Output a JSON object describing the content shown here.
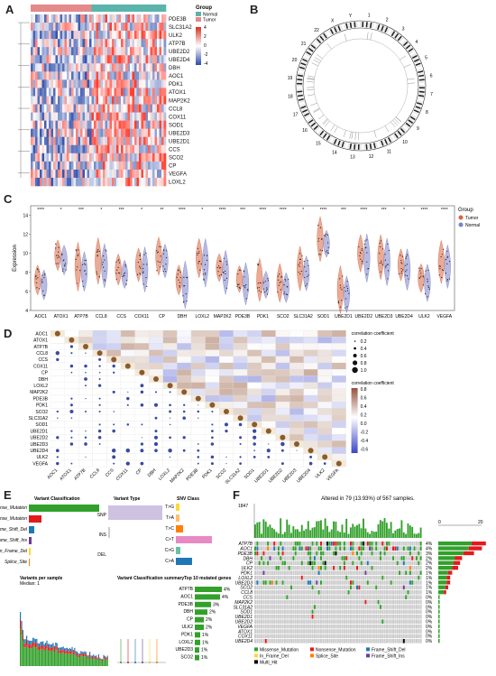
{
  "panel_letters": [
    "A",
    "B",
    "C",
    "D",
    "E",
    "F"
  ],
  "panel_a": {
    "genes": [
      "PDE3B",
      "SLC31A2",
      "ULK2",
      "ATP7B",
      "UBE2D2",
      "UBE2D4",
      "DBH",
      "AOC1",
      "PDK1",
      "ATOX1",
      "MAP2K2",
      "CCL8",
      "COX11",
      "SOD1",
      "UBE2D3",
      "UBE2D1",
      "CCS",
      "SCO2",
      "CP",
      "VEGFA",
      "LOXL2"
    ],
    "legend_title": "Group",
    "legend_items": [
      "Normal",
      "Tumor"
    ],
    "scale_ticks": [
      "4",
      "2",
      "0",
      "-2",
      "-4"
    ],
    "colors": {
      "normal": "#5ab4ac",
      "tumor": "#e58a8a",
      "high": "#d7301f",
      "low": "#2c4ba8"
    }
  },
  "panel_b": {
    "chromosomes": [
      "1",
      "2",
      "3",
      "4",
      "5",
      "6",
      "7",
      "8",
      "9",
      "10",
      "11",
      "12",
      "13",
      "14",
      "15",
      "16",
      "17",
      "18",
      "19",
      "20",
      "21",
      "22",
      "X",
      "Y"
    ]
  },
  "panel_c": {
    "y_label": "Expression",
    "y_ticks": [
      "14",
      "12",
      "10",
      "8",
      "6",
      "4"
    ],
    "genes": [
      "AOC1",
      "ATOX1",
      "ATP7B",
      "CCL8",
      "CCS",
      "COX11",
      "CP",
      "DBH",
      "LOXL2",
      "MAP2K2",
      "PDE3B",
      "PDK1",
      "SCO2",
      "SLC31A2",
      "SOD1",
      "UBE2D1",
      "UBE2D2",
      "UBE2D3",
      "UBE2D4",
      "ULK2",
      "VEGFA"
    ],
    "significance": [
      "****",
      "*",
      "***",
      "*",
      "***",
      "*",
      "**",
      "****",
      "*",
      "****",
      "***",
      "****",
      "****",
      "*",
      "****",
      "***",
      "****",
      "***",
      "*",
      "****",
      "****"
    ],
    "legend_title": "Group",
    "legend_items": [
      "Tumor",
      "Normal"
    ],
    "colors": {
      "tumor": "#d9663f",
      "normal": "#7b82c8"
    }
  },
  "panel_d": {
    "genes": [
      "AOC1",
      "ATOX1",
      "ATP7B",
      "CCL8",
      "CCS",
      "COX11",
      "CP",
      "DBH",
      "LOXL2",
      "MAP2K2",
      "PDE3B",
      "PDK1",
      "SCO2",
      "SLC31A2",
      "SOD1",
      "UBE2D1",
      "UBE2D2",
      "UBE2D3",
      "UBE2D4",
      "ULK2",
      "VEGFA"
    ],
    "legend1_title": "correlation coefficient",
    "legend1_ticks": [
      "0.2",
      "0.4",
      "0.6",
      "0.8",
      "1.0"
    ],
    "legend2_title": "correlation coefficient",
    "legend2_ticks": [
      "0.8",
      "0.6",
      "0.4",
      "0.2",
      "0.0",
      "-0.2",
      "-0.4",
      "-0.6"
    ]
  },
  "panel_e": {
    "titles": [
      "Variant Classification",
      "Variant Type",
      "SNV Class",
      "Variants per sample",
      "Variant Classification summary",
      "Top 10 mutated genes"
    ],
    "variant_classes": [
      "Missense_Mutation",
      "Nonsense_Mutation",
      "Frame_Shift_Del",
      "Frame_Shift_Ins",
      "In_Frame_Del",
      "Splice_Site"
    ],
    "variant_types": [
      "SNP",
      "INS",
      "DEL"
    ],
    "snv_classes": [
      "T>G",
      "T>A",
      "T>C",
      "C>T",
      "C>G",
      "C>A"
    ],
    "median_label": "Median: 1",
    "top_genes": [
      "ATP7B",
      "AOC1",
      "PDE3B",
      "DBH",
      "CP",
      "ULK2",
      "PDK1",
      "LOXL2",
      "UBE2D3",
      "SCO2"
    ],
    "top_pcts": [
      "4%",
      "4%",
      "3%",
      "2%",
      "2%",
      "2%",
      "1%",
      "1%",
      "1%",
      "1%"
    ]
  },
  "panel_f": {
    "title": "Altered in 79 (13.93%) of 567 samples.",
    "top_axis_max": "1847",
    "side_axis": [
      "0",
      "20"
    ],
    "genes": [
      "ATP7B",
      "AOC1",
      "PDE3B",
      "DBH",
      "CP",
      "ULK2",
      "PDK1",
      "LOXL2",
      "UBE2D3",
      "SCO2",
      "CCL8",
      "CCS",
      "MAP2K2",
      "SLC31A2",
      "SOD1",
      "UBE2D1",
      "UBE2D2",
      "VEGFA",
      "ATOX1",
      "COX11",
      "UBE2D4"
    ],
    "pcts": [
      "4%",
      "4%",
      "3%",
      "2%",
      "2%",
      "2%",
      "1%",
      "1%",
      "1%",
      "1%",
      "1%",
      "0%",
      "0%",
      "0%",
      "0%",
      "0%",
      "0%",
      "0%",
      "0%",
      "0%",
      "0%"
    ],
    "legend": [
      "Missense_Mutation",
      "Nonsense_Mutation",
      "Frame_Shift_Del",
      "In_Frame_Del",
      "Splice_Site",
      "Frame_Shift_Ins",
      "Multi_Hit"
    ],
    "colors": {
      "missense": "#33a02c",
      "nonsense": "#e31a1c",
      "fs_del": "#1f78b4",
      "in_frame_del": "#ffd92f",
      "splice": "#ff7f00",
      "fs_ins": "#6a3d9a",
      "multi": "#000000",
      "none": "#cccccc"
    }
  }
}
